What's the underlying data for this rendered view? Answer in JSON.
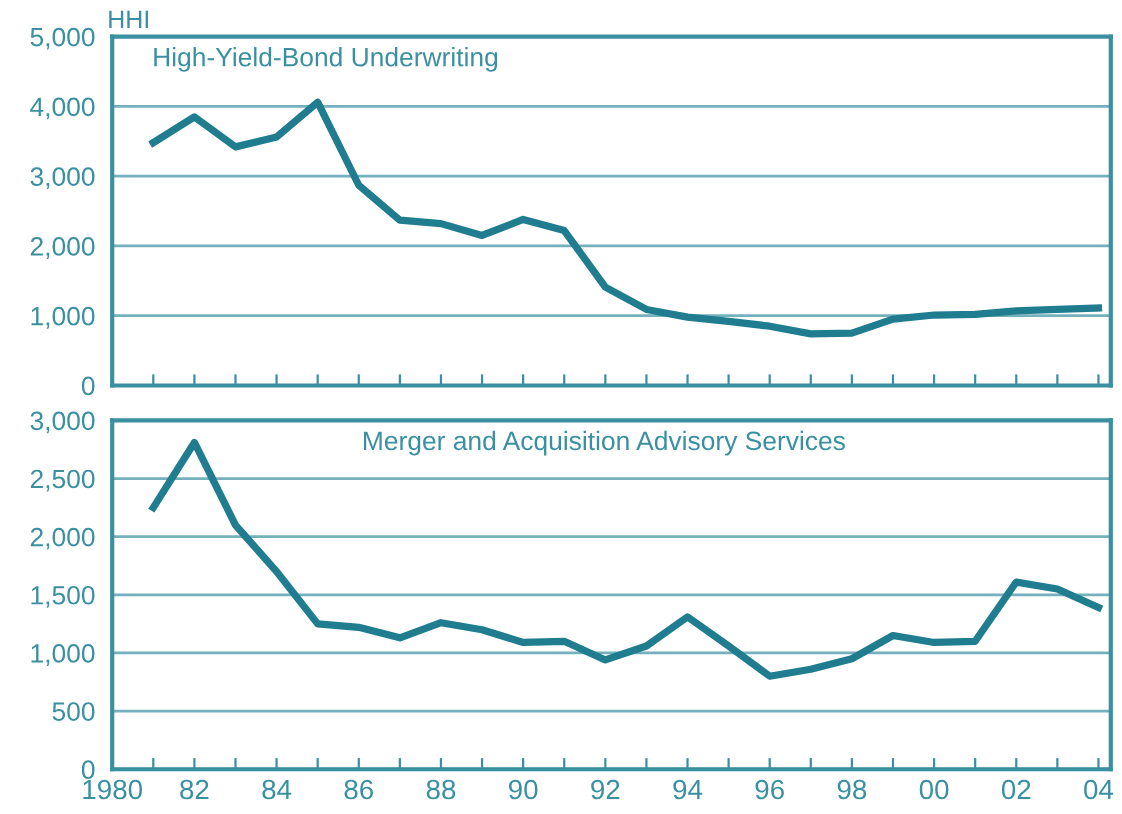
{
  "chart_data": [
    {
      "type": "line",
      "title": "High-Yield-Bond Underwriting",
      "ylabel": "HHI",
      "x": [
        1981,
        1982,
        1983,
        1984,
        1985,
        1986,
        1987,
        1988,
        1989,
        1990,
        1991,
        1992,
        1993,
        1994,
        1995,
        1996,
        1997,
        1998,
        1999,
        2000,
        2001,
        2002,
        2003,
        2004
      ],
      "series": [
        {
          "color": "#1f7d8f",
          "values": [
            3480,
            3850,
            3420,
            3560,
            4060,
            2870,
            2370,
            2320,
            2150,
            2380,
            2220,
            1410,
            1090,
            980,
            920,
            850,
            740,
            750,
            950,
            1010,
            1020,
            1070,
            1090,
            1110
          ]
        }
      ],
      "xlim": [
        1980,
        2004.3
      ],
      "xticks": [
        {
          "value": 1980,
          "label": null
        },
        {
          "value": 1981,
          "label": null
        },
        {
          "value": 1982,
          "label": null
        },
        {
          "value": 1983,
          "label": null
        },
        {
          "value": 1984,
          "label": null
        },
        {
          "value": 1985,
          "label": null
        },
        {
          "value": 1986,
          "label": null
        },
        {
          "value": 1987,
          "label": null
        },
        {
          "value": 1988,
          "label": null
        },
        {
          "value": 1989,
          "label": null
        },
        {
          "value": 1990,
          "label": null
        },
        {
          "value": 1991,
          "label": null
        },
        {
          "value": 1992,
          "label": null
        },
        {
          "value": 1993,
          "label": null
        },
        {
          "value": 1994,
          "label": null
        },
        {
          "value": 1995,
          "label": null
        },
        {
          "value": 1996,
          "label": null
        },
        {
          "value": 1997,
          "label": null
        },
        {
          "value": 1998,
          "label": null
        },
        {
          "value": 1999,
          "label": null
        },
        {
          "value": 2000,
          "label": null
        },
        {
          "value": 2001,
          "label": null
        },
        {
          "value": 2002,
          "label": null
        },
        {
          "value": 2003,
          "label": null
        },
        {
          "value": 2004,
          "label": null
        }
      ],
      "ylim": [
        0,
        5000
      ],
      "yticks": [
        {
          "value": 0,
          "label": "0"
        },
        {
          "value": 1000,
          "label": "1,000"
        },
        {
          "value": 2000,
          "label": "2,000"
        },
        {
          "value": 3000,
          "label": "3,000"
        },
        {
          "value": 4000,
          "label": "4,000"
        },
        {
          "value": 5000,
          "label": "5,000"
        }
      ],
      "grid": "y",
      "tick_labels": "y",
      "marker": "none",
      "line_style": "solid"
    },
    {
      "type": "line",
      "title": "Merger and Acquisition Advisory Services",
      "x": [
        1981,
        1982,
        1983,
        1984,
        1985,
        1986,
        1987,
        1988,
        1989,
        1990,
        1991,
        1992,
        1993,
        1994,
        1995,
        1996,
        1997,
        1998,
        1999,
        2000,
        2001,
        2002,
        2003,
        2004
      ],
      "series": [
        {
          "color": "#1f7d8f",
          "values": [
            2250,
            2810,
            2100,
            1700,
            1250,
            1220,
            1130,
            1260,
            1200,
            1090,
            1100,
            940,
            1060,
            1310,
            1060,
            800,
            860,
            950,
            1150,
            1090,
            1100,
            1610,
            1550,
            1390
          ]
        }
      ],
      "xlim": [
        1980,
        2004.3
      ],
      "xticks": [
        {
          "value": 1980,
          "label": "1980"
        },
        {
          "value": 1981,
          "label": null
        },
        {
          "value": 1982,
          "label": "82"
        },
        {
          "value": 1983,
          "label": null
        },
        {
          "value": 1984,
          "label": "84"
        },
        {
          "value": 1985,
          "label": null
        },
        {
          "value": 1986,
          "label": "86"
        },
        {
          "value": 1987,
          "label": null
        },
        {
          "value": 1988,
          "label": "88"
        },
        {
          "value": 1989,
          "label": null
        },
        {
          "value": 1990,
          "label": "90"
        },
        {
          "value": 1991,
          "label": null
        },
        {
          "value": 1992,
          "label": "92"
        },
        {
          "value": 1993,
          "label": null
        },
        {
          "value": 1994,
          "label": "94"
        },
        {
          "value": 1995,
          "label": null
        },
        {
          "value": 1996,
          "label": "96"
        },
        {
          "value": 1997,
          "label": null
        },
        {
          "value": 1998,
          "label": "98"
        },
        {
          "value": 1999,
          "label": null
        },
        {
          "value": 2000,
          "label": "00"
        },
        {
          "value": 2001,
          "label": null
        },
        {
          "value": 2002,
          "label": "02"
        },
        {
          "value": 2003,
          "label": null
        },
        {
          "value": 2004,
          "label": "04"
        }
      ],
      "ylim": [
        0,
        3000
      ],
      "yticks": [
        {
          "value": 0,
          "label": "0"
        },
        {
          "value": 500,
          "label": "500"
        },
        {
          "value": 1000,
          "label": "1,000"
        },
        {
          "value": 1500,
          "label": "1,500"
        },
        {
          "value": 2000,
          "label": "2,000"
        },
        {
          "value": 2500,
          "label": "2,500"
        },
        {
          "value": 3000,
          "label": "3,000"
        }
      ],
      "grid": "y",
      "marker": "none",
      "line_style": "solid"
    }
  ]
}
